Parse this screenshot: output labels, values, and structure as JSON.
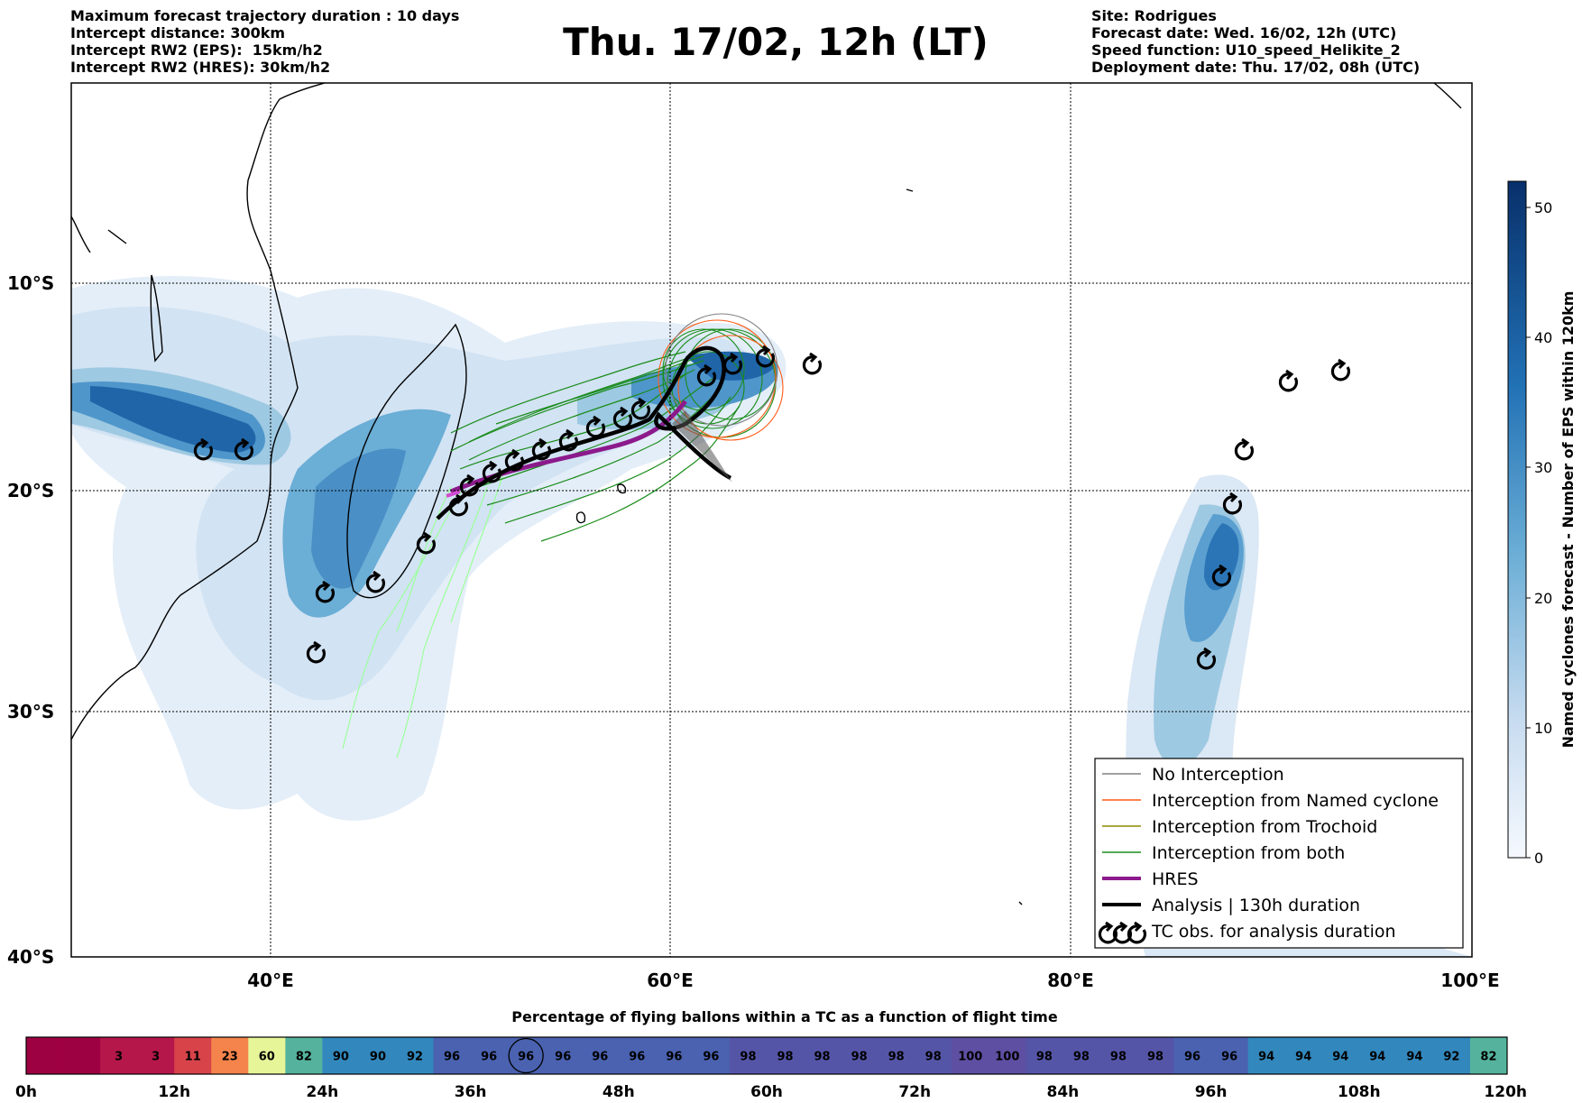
{
  "header": {
    "left": [
      "Maximum forecast trajectory duration : 10 days",
      "Intercept distance: 300km",
      "Intercept RW2 (EPS):  15km/h2",
      "Intercept RW2 (HRES): 30km/h2"
    ],
    "title": "Thu. 17/02, 12h (LT)",
    "right": [
      "Site: Rodrigues",
      "Forecast date: Wed. 16/02, 12h (UTC)",
      "Speed function: U10_speed_Helikite_2",
      "Deployment date: Thu. 17/02, 08h (UTC)"
    ]
  },
  "map": {
    "lat_labels": [
      "10°S",
      "20°S",
      "30°S",
      "40°S"
    ],
    "lon_labels": [
      "40°E",
      "60°E",
      "80°E",
      "100°E"
    ],
    "extent": {
      "lon_min": 30,
      "lon_max": 100,
      "lat_min": -40,
      "lat_max": 0
    },
    "colors": {
      "no_interception": "#808080",
      "named_cyclone": "#ff5a14",
      "trochoid": "#8b8b00",
      "both": "#1a8c1a",
      "hres": "#8c1a8c",
      "analysis": "#000000",
      "light_green": "#9cff9c"
    }
  },
  "legend": [
    {
      "label": "No Interception",
      "icon": "line-gray"
    },
    {
      "label": "Interception from Named cyclone",
      "icon": "line-orange"
    },
    {
      "label": "Interception from Trochoid",
      "icon": "line-olive"
    },
    {
      "label": "Interception from both",
      "icon": "line-green"
    },
    {
      "label": "HRES",
      "icon": "line-purple-thick"
    },
    {
      "label": "Analysis | 130h duration",
      "icon": "line-black-thick"
    },
    {
      "label": "TC obs. for analysis duration",
      "icon": "cyclone-symbols"
    }
  ],
  "colorbar": {
    "title": "Named cyclones forecast - Number of EPS within 120km",
    "ticks": [
      "0",
      "10",
      "20",
      "30",
      "40",
      "50"
    ],
    "range": [
      0,
      52
    ]
  },
  "time_bar": {
    "title": "Percentage of flying ballons within a TC as a function of flight time",
    "values": [
      "",
      "",
      "3",
      "3",
      "11",
      "23",
      "60",
      "82",
      "90",
      "90",
      "92",
      "96",
      "96",
      "96",
      "96",
      "96",
      "96",
      "96",
      "96",
      "98",
      "98",
      "98",
      "98",
      "98",
      "98",
      "100",
      "100",
      "98",
      "98",
      "98",
      "98",
      "96",
      "96",
      "94",
      "94",
      "94",
      "94",
      "94",
      "92",
      "82"
    ],
    "highlight_index": 13,
    "ticks": [
      "0h",
      "12h",
      "24h",
      "36h",
      "48h",
      "60h",
      "72h",
      "84h",
      "96h",
      "108h",
      "120h"
    ]
  }
}
